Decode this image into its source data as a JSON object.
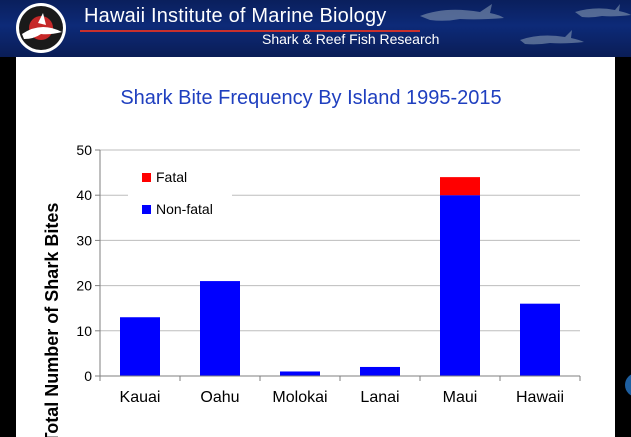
{
  "header": {
    "org_name": "Hawaii Institute of Marine Biology",
    "subtitle": "Shark & Reef Fish Research"
  },
  "colors": {
    "fatal": "#ff0000",
    "non_fatal": "#0000ff",
    "title": "#1f3fbf",
    "banner": "#0d2a78"
  },
  "chart_data": {
    "type": "bar",
    "stacked": true,
    "title": "Shark Bite Frequency By Island 1995-2015",
    "xlabel": "",
    "ylabel": "Total Number of Shark Bites",
    "categories": [
      "Kauai",
      "Oahu",
      "Molokai",
      "Lanai",
      "Maui",
      "Hawaii"
    ],
    "series": [
      {
        "name": "Non-fatal",
        "values": [
          13,
          21,
          1,
          2,
          40,
          16
        ]
      },
      {
        "name": "Fatal",
        "values": [
          0,
          0,
          0,
          0,
          4,
          0
        ]
      }
    ],
    "ylim": [
      0,
      50
    ],
    "yticks": [
      "0",
      "10",
      "20",
      "30",
      "40",
      "50"
    ],
    "grid": true,
    "legend": {
      "position": "top-left",
      "entries": [
        "Fatal",
        "Non-fatal"
      ]
    }
  }
}
